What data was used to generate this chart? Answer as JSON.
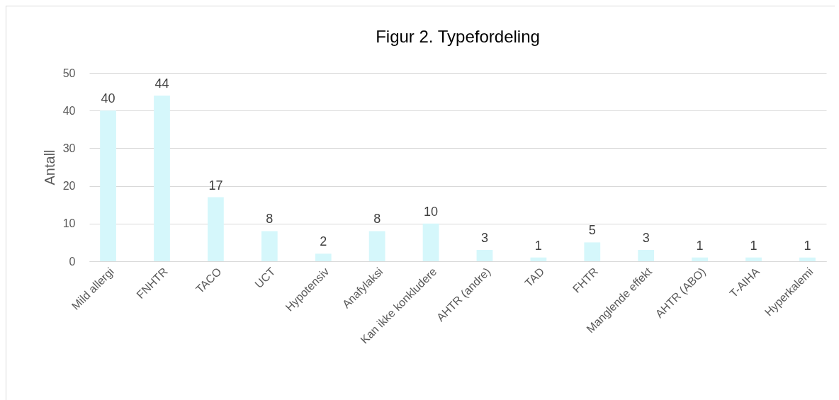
{
  "chart_data": {
    "type": "bar",
    "title": "Figur 2. Typefordeling",
    "ylabel": "Antall",
    "categories": [
      "Mild allergi",
      "FNHTR",
      "TACO",
      "UCT",
      "Hypotensiv",
      "Anafylaksi",
      "Kan ikke konkludere",
      "AHTR (andre)",
      "TAD",
      "FHTR",
      "Manglende effekt",
      "AHTR (ABO)",
      "T-AIHA",
      "Hyperkalemi"
    ],
    "values": [
      40,
      44,
      17,
      8,
      2,
      8,
      10,
      3,
      1,
      5,
      3,
      1,
      1,
      1
    ],
    "color": "#d5f7fb",
    "ylim": [
      0,
      50
    ],
    "yticks": [
      0,
      10,
      20,
      30,
      40,
      50
    ],
    "grid": "y",
    "data_labels": true
  }
}
